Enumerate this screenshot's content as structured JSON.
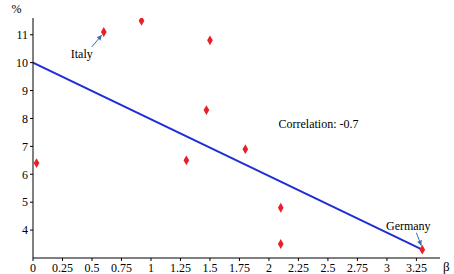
{
  "chart_data": {
    "type": "scatter",
    "x_label": "β",
    "y_label": "%",
    "xlim": [
      0,
      3.45
    ],
    "xticks": [
      0,
      0.25,
      0.5,
      0.75,
      1,
      1.25,
      1.5,
      1.75,
      2,
      2.25,
      2.5,
      2.75,
      3,
      3.25
    ],
    "ylim": [
      3,
      11.6
    ],
    "yticks": [
      4,
      5,
      6,
      7,
      8,
      9,
      10,
      11
    ],
    "grid": false,
    "series": [
      {
        "type": "scatter",
        "color": "#e8202a",
        "marker": "diamond",
        "x": [
          0.03,
          0.6,
          0.92,
          1.3,
          1.47,
          1.5,
          1.8,
          2.1,
          2.1,
          3.3
        ],
        "values": [
          6.4,
          11.1,
          11.5,
          6.5,
          8.3,
          10.8,
          6.9,
          4.8,
          3.5,
          3.3
        ]
      },
      {
        "type": "line",
        "color": "#1f2ed6",
        "line_style": "solid",
        "x": [
          0,
          3.3
        ],
        "values": [
          10,
          3.3
        ]
      }
    ],
    "annotations": [
      {
        "text": "Italy",
        "x": 0.6,
        "y": 11.1
      },
      {
        "text": "Germany",
        "x": 3.3,
        "y": 3.3
      },
      {
        "text": "Correlation: -0.7",
        "x": 2.42,
        "y": 7.8
      }
    ]
  }
}
